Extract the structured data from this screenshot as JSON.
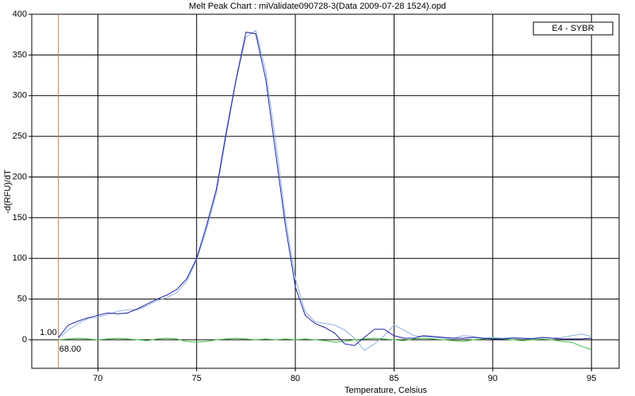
{
  "chart_data": {
    "type": "line",
    "title": "Melt Peak Chart : miValidate090728-3(Data 2009-07-28 1524).opd",
    "x_label": "Temperature, Celsius",
    "y_label": "-d(RFU)/dT",
    "legend_label": "E4 - SYBR",
    "xlim": [
      66.65,
      96.4
    ],
    "ylim": [
      -35,
      400
    ],
    "xticks": [
      70,
      75,
      80,
      85,
      90,
      95
    ],
    "yticks": [
      0,
      50,
      100,
      150,
      200,
      250,
      300,
      350,
      400
    ],
    "grid": true,
    "grid_color": "#000000",
    "cursor": {
      "x": {
        "value": 68,
        "label": "68.00"
      },
      "y": {
        "value": 1,
        "label": "1.00"
      },
      "color": "#d08050"
    },
    "x": [
      68,
      68.5,
      69,
      69.5,
      70,
      70.5,
      71,
      71.5,
      72,
      72.5,
      73,
      73.5,
      74,
      74.5,
      75,
      75.5,
      76,
      76.5,
      77,
      77.5,
      78,
      78.5,
      79,
      79.5,
      80,
      80.5,
      81,
      81.5,
      82,
      82.5,
      83,
      83.5,
      84,
      84.5,
      85,
      85.5,
      86,
      86.5,
      87,
      87.5,
      88,
      88.5,
      89,
      89.5,
      90,
      90.5,
      91,
      91.5,
      92,
      92.5,
      93,
      93.5,
      94,
      94.5,
      95
    ],
    "series": [
      {
        "color": "#8fb0e0",
        "values": [
          2,
          12,
          20,
          26,
          28,
          31,
          35,
          37,
          37,
          42,
          48,
          52,
          58,
          72,
          98,
          135,
          180,
          250,
          318,
          372,
          380,
          330,
          245,
          150,
          75,
          35,
          22,
          20,
          18,
          12,
          2,
          -13,
          -5,
          5,
          18,
          12,
          5,
          4,
          3,
          2,
          2,
          5,
          4,
          2,
          3,
          2,
          3,
          2,
          2,
          3,
          2,
          3,
          5,
          7,
          4
        ]
      },
      {
        "color": "#40c040",
        "values": [
          0,
          1,
          2,
          1,
          0,
          1,
          2,
          1,
          0,
          -1,
          1,
          2,
          1,
          -2,
          -3,
          -2,
          0,
          1,
          2,
          1,
          0,
          1,
          0,
          1,
          0,
          1,
          0,
          -1,
          -3,
          -2,
          0,
          1,
          2,
          1,
          0,
          -1,
          1,
          2,
          1,
          0,
          -1,
          -2,
          0,
          1,
          2,
          1,
          0,
          -1,
          0,
          1,
          0,
          -2,
          -3,
          -8,
          -12
        ]
      },
      {
        "color": "#2020a0",
        "values": [
          3,
          18,
          23,
          27,
          30,
          33,
          32,
          33,
          38,
          44,
          50,
          55,
          62,
          75,
          100,
          140,
          185,
          255,
          320,
          378,
          376,
          320,
          230,
          140,
          65,
          30,
          20,
          15,
          8,
          -5,
          -7,
          3,
          13,
          13,
          5,
          2,
          2,
          5,
          4,
          3,
          2,
          2,
          3,
          2,
          1,
          1,
          2,
          2,
          1,
          3,
          2,
          1,
          1,
          1,
          2
        ]
      }
    ]
  }
}
